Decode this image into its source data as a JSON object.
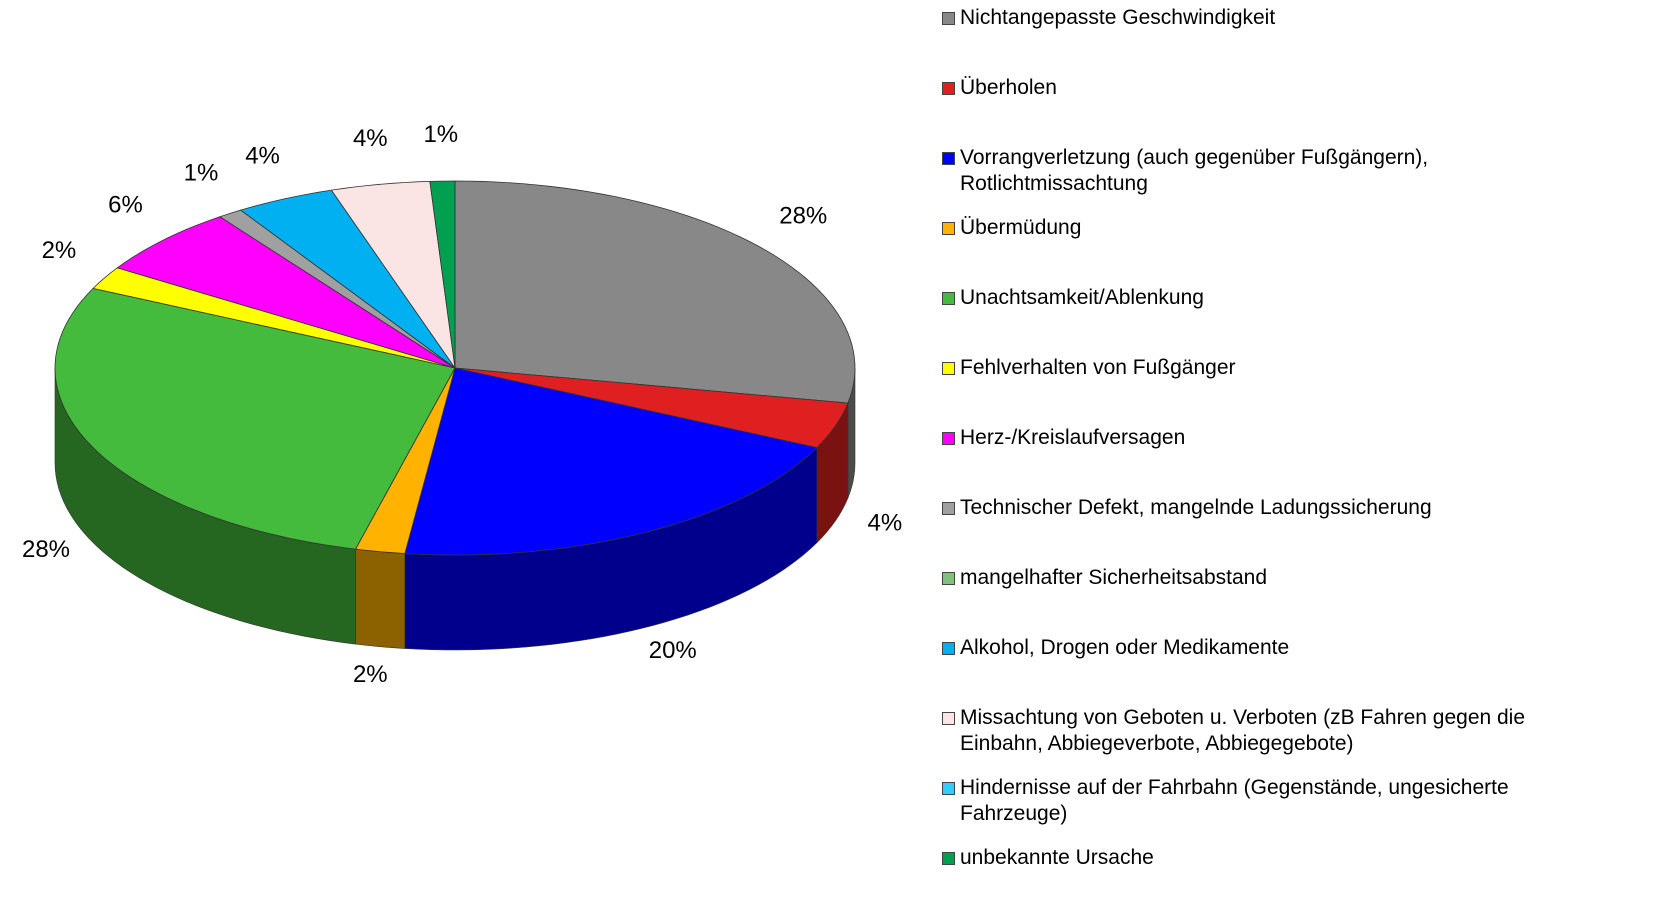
{
  "chart_data": {
    "type": "pie",
    "categories": [
      "Nichtangepasste Geschwindigkeit",
      "Überholen",
      "Vorrangverletzung (auch gegenüber Fußgängern), Rotlichtmissachtung",
      "Übermüdung",
      "Unachtsamkeit/Ablenkung",
      "Fehlverhalten von Fußgänger",
      "Herz-/Kreislaufversagen",
      "Technischer Defekt, mangelnde Ladungssicherung",
      "mangelhafter Sicherheitsabstand",
      "Alkohol, Drogen oder Medikamente",
      "Missachtung von Geboten u. Verboten (zB Fahren gegen die Einbahn, Abbiegeverbote, Abbiegegebote)",
      "Hindernisse auf der Fahrbahn (Gegenstände, ungesicherte Fahrzeuge)",
      "unbekannte Ursache"
    ],
    "values": [
      28,
      4,
      20,
      2,
      28,
      2,
      6,
      1,
      0,
      4,
      4,
      0,
      1
    ],
    "value_labels": [
      "28%",
      "4%",
      "20%",
      "2%",
      "28%",
      "2%",
      "6%",
      "1%",
      null,
      "4%",
      "4%",
      null,
      "1%"
    ],
    "colors": [
      "#888888",
      "#e02020",
      "#0000ff",
      "#ffb300",
      "#44bb3c",
      "#ffff00",
      "#ff00ff",
      "#a0a0a0",
      "#80c080",
      "#00b0f0",
      "#fbe4e4",
      "#33ccff",
      "#00a050"
    ],
    "legend": "right"
  }
}
